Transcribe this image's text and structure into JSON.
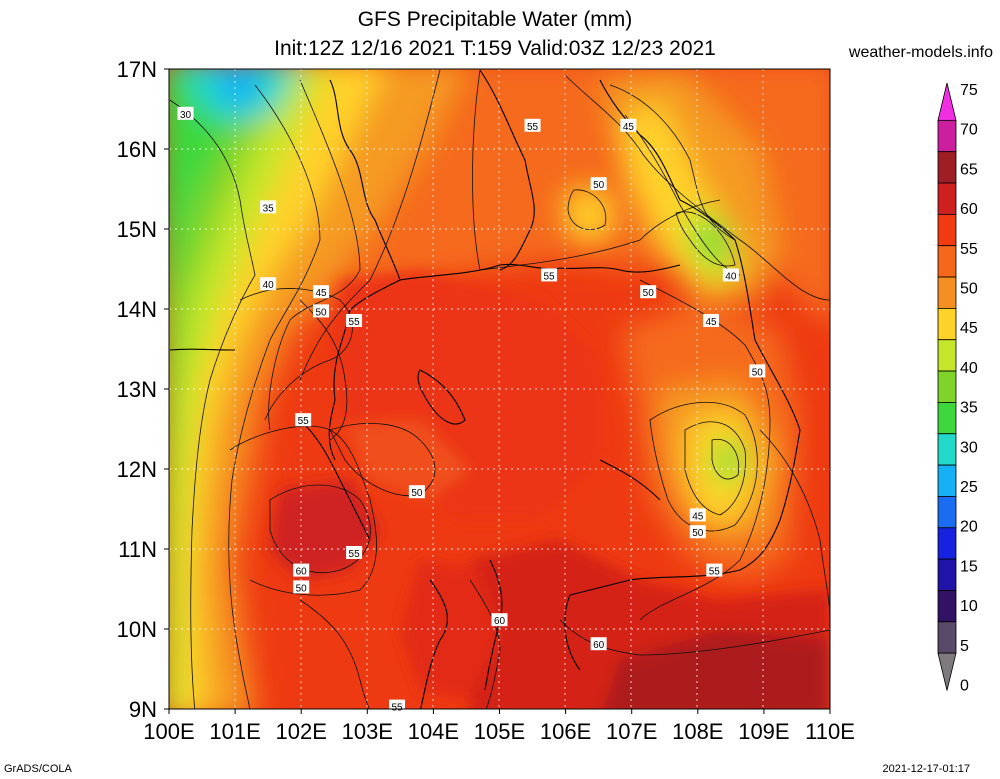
{
  "header": {
    "title_line1": "GFS Precipitable Water (mm)",
    "title_line2": "Init:12Z 12/16 2021 T:159 Valid:03Z 12/23 2021",
    "site": "weather-models.info"
  },
  "footer": {
    "left": "GrADS/COLA",
    "right": "2021-12-17-01:17"
  },
  "map": {
    "lon_range": [
      100,
      110
    ],
    "lat_range": [
      9,
      17
    ],
    "lon_ticks": [
      "100E",
      "101E",
      "102E",
      "103E",
      "104E",
      "105E",
      "106E",
      "107E",
      "108E",
      "109E",
      "110E"
    ],
    "lat_ticks": [
      "17N",
      "16N",
      "15N",
      "14N",
      "13N",
      "12N",
      "11N",
      "10N",
      "9N"
    ],
    "grid": true,
    "contour_labels": [
      {
        "text": "30",
        "lon": 100.25,
        "lat": 16.44
      },
      {
        "text": "35",
        "lon": 101.5,
        "lat": 15.27
      },
      {
        "text": "40",
        "lon": 101.5,
        "lat": 14.31
      },
      {
        "text": "45",
        "lon": 102.3,
        "lat": 14.21
      },
      {
        "text": "50",
        "lon": 102.3,
        "lat": 13.97
      },
      {
        "text": "55",
        "lon": 102.8,
        "lat": 13.85
      },
      {
        "text": "55",
        "lon": 105.5,
        "lat": 16.29
      },
      {
        "text": "45",
        "lon": 106.95,
        "lat": 16.29
      },
      {
        "text": "50",
        "lon": 106.5,
        "lat": 15.56
      },
      {
        "text": "55",
        "lon": 105.75,
        "lat": 14.42
      },
      {
        "text": "50",
        "lon": 107.25,
        "lat": 14.21
      },
      {
        "text": "40",
        "lon": 108.5,
        "lat": 14.42
      },
      {
        "text": "45",
        "lon": 108.2,
        "lat": 13.85
      },
      {
        "text": "50",
        "lon": 108.9,
        "lat": 13.22
      },
      {
        "text": "55",
        "lon": 102.03,
        "lat": 12.61
      },
      {
        "text": "50",
        "lon": 103.75,
        "lat": 11.71
      },
      {
        "text": "45",
        "lon": 108.0,
        "lat": 11.42
      },
      {
        "text": "50",
        "lon": 108.0,
        "lat": 11.21
      },
      {
        "text": "55",
        "lon": 102.8,
        "lat": 10.95
      },
      {
        "text": "60",
        "lon": 102.0,
        "lat": 10.73
      },
      {
        "text": "50",
        "lon": 102.0,
        "lat": 10.52
      },
      {
        "text": "55",
        "lon": 108.25,
        "lat": 10.73
      },
      {
        "text": "60",
        "lon": 105.0,
        "lat": 10.11
      },
      {
        "text": "60",
        "lon": 106.5,
        "lat": 9.81
      },
      {
        "text": "55",
        "lon": 103.45,
        "lat": 9.03
      }
    ]
  },
  "colorbar": {
    "labels": [
      "75",
      "70",
      "65",
      "60",
      "55",
      "50",
      "45",
      "40",
      "35",
      "30",
      "25",
      "20",
      "15",
      "10",
      "5",
      "0"
    ],
    "colors_top_to_bottom": [
      "#f22ee2",
      "#cc1f9f",
      "#9e1e26",
      "#cf2020",
      "#f23a10",
      "#f5681a",
      "#f58f22",
      "#ffd22a",
      "#c5e62a",
      "#7fd42a",
      "#3ed83e",
      "#22d8c8",
      "#16b0f5",
      "#1a6cf0",
      "#1622e0",
      "#2014a8",
      "#321264",
      "#5a4a6a",
      "#7e7a7e"
    ]
  }
}
